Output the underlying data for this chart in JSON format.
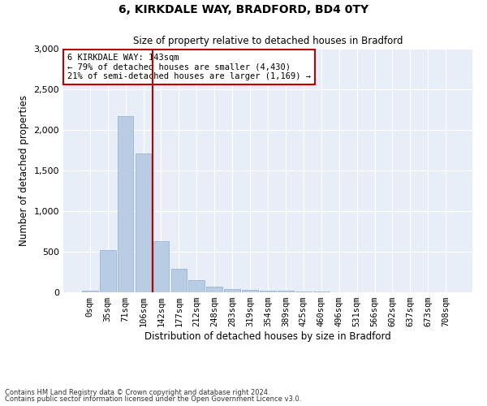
{
  "title1": "6, KIRKDALE WAY, BRADFORD, BD4 0TY",
  "title2": "Size of property relative to detached houses in Bradford",
  "xlabel": "Distribution of detached houses by size in Bradford",
  "ylabel": "Number of detached properties",
  "bar_labels": [
    "0sqm",
    "35sqm",
    "71sqm",
    "106sqm",
    "142sqm",
    "177sqm",
    "212sqm",
    "248sqm",
    "283sqm",
    "319sqm",
    "354sqm",
    "389sqm",
    "425sqm",
    "460sqm",
    "496sqm",
    "531sqm",
    "566sqm",
    "602sqm",
    "637sqm",
    "673sqm",
    "708sqm"
  ],
  "bar_values": [
    25,
    520,
    2175,
    1710,
    635,
    290,
    150,
    75,
    45,
    35,
    25,
    20,
    15,
    10,
    5,
    3,
    2,
    1,
    1,
    1,
    1
  ],
  "bar_color": "#b8cce4",
  "bar_edge_color": "#8eadd4",
  "vline_bin": 4,
  "vline_color": "#c00000",
  "ylim": [
    0,
    3000
  ],
  "yticks": [
    0,
    500,
    1000,
    1500,
    2000,
    2500,
    3000
  ],
  "annotation_text": "6 KIRKDALE WAY: 143sqm\n← 79% of detached houses are smaller (4,430)\n21% of semi-detached houses are larger (1,169) →",
  "annotation_box_color": "#ffffff",
  "annotation_border_color": "#c00000",
  "footer1": "Contains HM Land Registry data © Crown copyright and database right 2024.",
  "footer2": "Contains public sector information licensed under the Open Government Licence v3.0.",
  "bg_color": "#e8eef8"
}
